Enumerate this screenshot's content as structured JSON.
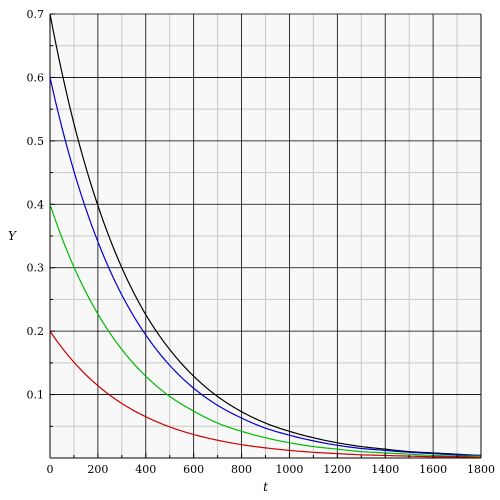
{
  "chart_data": {
    "type": "line",
    "title": "",
    "xlabel": "t",
    "ylabel": "Y",
    "xlim": [
      0,
      1800
    ],
    "ylim": [
      0,
      0.7
    ],
    "grid": true,
    "x_major_ticks": [
      "0",
      "200",
      "400",
      "600",
      "800",
      "1000",
      "1200",
      "1400",
      "1600",
      "1800"
    ],
    "y_major_ticks": [
      "0.1",
      "0.2",
      "0.3",
      "0.4",
      "0.5",
      "0.6",
      "0.7"
    ],
    "major_grid_color": "#000000",
    "minor_grid_color": "#c8c8c8",
    "background": "#f8f8f8",
    "x": [
      0,
      100,
      200,
      300,
      400,
      500,
      600,
      700,
      800,
      900,
      1000,
      1100,
      1200,
      1300,
      1400,
      1500,
      1600,
      1700,
      1800
    ],
    "series": [
      {
        "color": "#000000",
        "values": [
          0.7,
          0.527,
          0.398,
          0.3,
          0.226,
          0.171,
          0.129,
          0.097,
          0.073,
          0.055,
          0.042,
          0.032,
          0.024,
          0.018,
          0.014,
          0.01,
          0.008,
          0.006,
          0.004
        ]
      },
      {
        "color": "#0000cc",
        "values": [
          0.6,
          0.452,
          0.341,
          0.257,
          0.194,
          0.146,
          0.11,
          0.083,
          0.063,
          0.047,
          0.036,
          0.027,
          0.02,
          0.015,
          0.012,
          0.009,
          0.007,
          0.005,
          0.004
        ]
      },
      {
        "color": "#00bb00",
        "values": [
          0.4,
          0.301,
          0.227,
          0.171,
          0.129,
          0.097,
          0.074,
          0.055,
          0.042,
          0.032,
          0.024,
          0.018,
          0.014,
          0.01,
          0.008,
          0.006,
          0.004,
          0.003,
          0.003
        ]
      },
      {
        "color": "#cc0000",
        "values": [
          0.2,
          0.151,
          0.114,
          0.086,
          0.065,
          0.049,
          0.037,
          0.028,
          0.021,
          0.016,
          0.012,
          0.009,
          0.007,
          0.005,
          0.004,
          0.003,
          0.002,
          0.002,
          0.001
        ]
      }
    ]
  }
}
